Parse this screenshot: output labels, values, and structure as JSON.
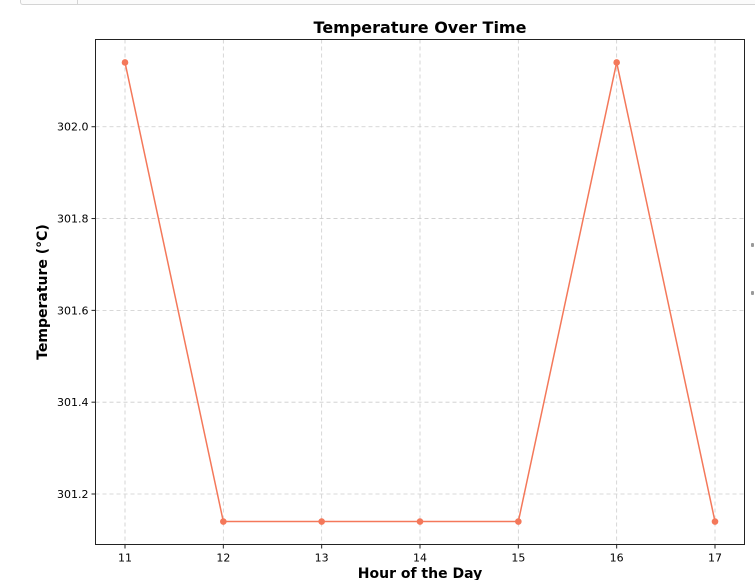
{
  "chart_data": {
    "type": "line",
    "title": "Temperature Over Time",
    "xlabel": "Hour of the Day",
    "ylabel": "Temperature (°C)",
    "x": [
      11,
      12,
      13,
      14,
      15,
      16,
      17
    ],
    "series": [
      {
        "values": [
          302.14,
          301.14,
          301.14,
          301.14,
          301.14,
          302.14,
          301.14
        ],
        "color": "#f4785a"
      }
    ],
    "x_ticks": [
      "11",
      "12",
      "13",
      "14",
      "15",
      "16",
      "17"
    ],
    "y_ticks": [
      "301.2",
      "301.4",
      "301.6",
      "301.8",
      "302.0"
    ],
    "y_tick_values": [
      301.2,
      301.4,
      301.6,
      301.8,
      302.0
    ],
    "xlim": [
      10.7,
      17.3
    ],
    "ylim": [
      301.09,
      302.19
    ],
    "grid": true,
    "grid_style": "dashed",
    "marker": "circle"
  }
}
